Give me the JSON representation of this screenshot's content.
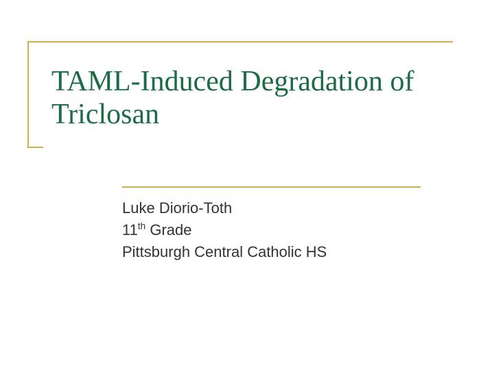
{
  "slide": {
    "title": "TAML-Induced Degradation of Triclosan",
    "author": "Luke Diorio-Toth",
    "grade_number": "11",
    "grade_suffix": "th",
    "grade_word": " Grade",
    "school": "Pittsburgh Central Catholic HS"
  },
  "styling": {
    "accent_color": "#c9b050",
    "title_color": "#1b6b47",
    "text_color": "#333333",
    "background_color": "#ffffff",
    "title_fontsize": 42,
    "subtitle_fontsize": 22
  }
}
